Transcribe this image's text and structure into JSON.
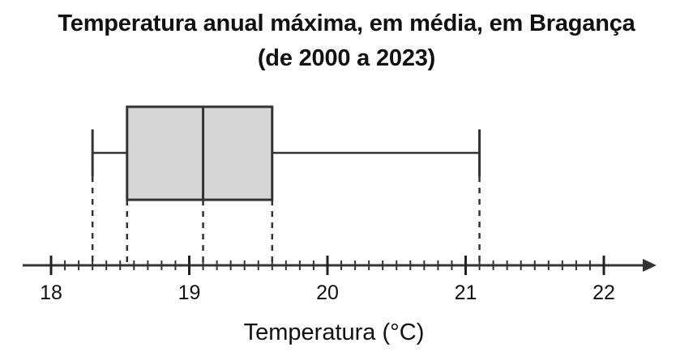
{
  "chart_data": {
    "type": "boxplot",
    "title": "Temperatura anual máxima, em média, em Bragança",
    "subtitle": "(de 2000 a 2023)",
    "xlabel": "Temperatura (°C)",
    "xlim": [
      18,
      22.35
    ],
    "major_ticks": [
      18,
      19,
      20,
      21,
      22
    ],
    "minor_step": 0.1,
    "grid": false,
    "box": {
      "min": 18.3,
      "q1": 18.55,
      "median": 19.1,
      "q3": 19.6,
      "max": 21.1
    },
    "colors": {
      "box_fill": "#d6d6d6",
      "stroke": "#333333"
    }
  }
}
